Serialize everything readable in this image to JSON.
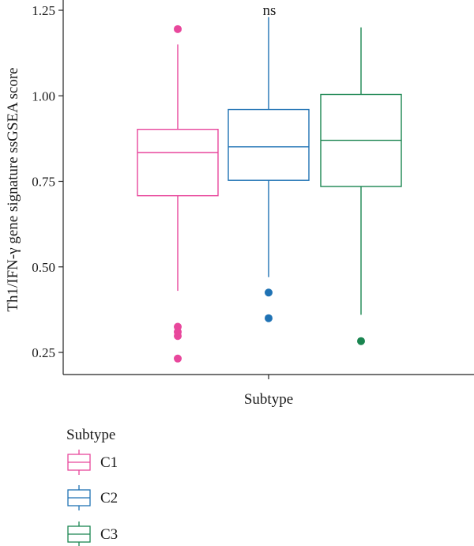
{
  "chart_data": {
    "type": "box",
    "xlabel": "Subtype",
    "ylabel": "Th1/IFN-γ gene signature ssGSEA score",
    "ylim": [
      0.2,
      1.25
    ],
    "yticks": [
      "0.25",
      "0.50",
      "0.75",
      "1.00",
      "1.25"
    ],
    "ytick_values": [
      0.25,
      0.5,
      0.75,
      1.0,
      1.25
    ],
    "annotation": "ns",
    "grid": false,
    "legend": {
      "title": "Subtype",
      "placement": "bottom-left",
      "items": [
        "C1",
        "C2",
        "C3"
      ]
    },
    "series": [
      {
        "name": "C1",
        "color": "#e8479c",
        "whisker_low": 0.43,
        "q1": 0.708,
        "median": 0.834,
        "q3": 0.902,
        "whisker_high": 1.15,
        "outliers": [
          1.195,
          0.325,
          0.31,
          0.298,
          0.232
        ]
      },
      {
        "name": "C2",
        "color": "#1f72b4",
        "whisker_low": 0.47,
        "q1": 0.753,
        "median": 0.851,
        "q3": 0.96,
        "whisker_high": 1.23,
        "outliers": [
          0.425,
          0.35
        ]
      },
      {
        "name": "C3",
        "color": "#1a8550",
        "whisker_low": 0.36,
        "q1": 0.735,
        "median": 0.87,
        "q3": 1.004,
        "whisker_high": 1.2,
        "outliers": [
          0.283
        ]
      }
    ]
  }
}
